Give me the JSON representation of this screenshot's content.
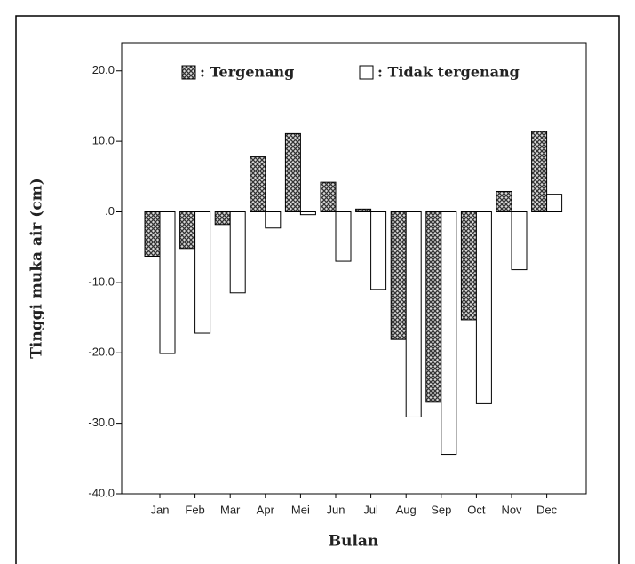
{
  "chart_data": {
    "type": "bar",
    "y_label": "Tinggi muka air (cm)",
    "x_label": "Bulan",
    "categories": [
      "Jan",
      "Feb",
      "Mar",
      "Apr",
      "Mei",
      "Jun",
      "Jul",
      "Aug",
      "Sep",
      "Oct",
      "Nov",
      "Dec"
    ],
    "series": [
      {
        "name": ": Tergenang",
        "color": "#3a3a3a",
        "pattern": "crosshatch",
        "values": [
          -6.3,
          -5.2,
          -1.8,
          7.8,
          11.1,
          4.2,
          0.4,
          -18.1,
          -27.0,
          -15.3,
          2.9,
          11.4
        ]
      },
      {
        "name": ": Tidak tergenang",
        "color": "#ffffff",
        "pattern": "none",
        "values": [
          -20.1,
          -17.2,
          -11.5,
          -2.3,
          -0.4,
          -7.0,
          -11.0,
          -29.1,
          -34.4,
          -27.2,
          -8.2,
          2.5
        ]
      }
    ],
    "ylim": [
      -40,
      24
    ],
    "yticks": [
      {
        "value": -40,
        "label": "-40.0"
      },
      {
        "value": -30,
        "label": "-30.0"
      },
      {
        "value": -20,
        "label": "-20.0"
      },
      {
        "value": -10,
        "label": "-10.0"
      },
      {
        "value": 0,
        "label": ".0"
      },
      {
        "value": 10,
        "label": "10.0"
      },
      {
        "value": 20,
        "label": "20.0"
      }
    ],
    "legend": "top"
  }
}
